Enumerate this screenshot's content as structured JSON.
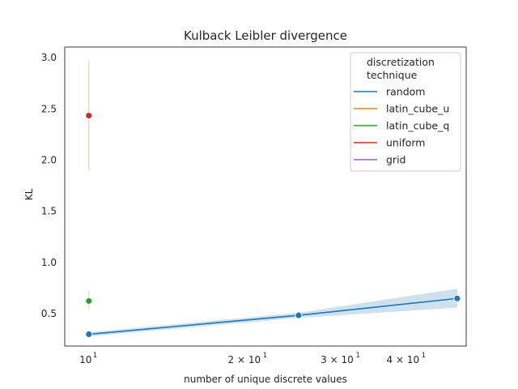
{
  "chart_data": {
    "type": "line",
    "title": "Kulback Leibler divergence",
    "xlabel": "number of unique discrete values",
    "ylabel": "KL",
    "xscale": "log",
    "xlim": [
      9.0,
      52.0
    ],
    "ylim": [
      0.18,
      3.1
    ],
    "x_ticks": [
      {
        "value": 10,
        "base": "10",
        "exp": "1",
        "mult": ""
      },
      {
        "value": 20,
        "base": "10",
        "exp": "1",
        "mult": "2 × "
      },
      {
        "value": 30,
        "base": "10",
        "exp": "1",
        "mult": "3 × "
      },
      {
        "value": 40,
        "base": "10",
        "exp": "1",
        "mult": "4 × "
      }
    ],
    "y_ticks": [
      0.5,
      1.0,
      1.5,
      2.0,
      2.5,
      3.0
    ],
    "y_tick_labels": [
      "0.5",
      "1.0",
      "1.5",
      "2.0",
      "2.5",
      "3.0"
    ],
    "grid": false,
    "legend": {
      "title_lines": [
        "discretization",
        "technique"
      ],
      "placement": "top-right"
    },
    "series": [
      {
        "name": "random",
        "color": "#1f77b4",
        "x": [
          10,
          25,
          50
        ],
        "y": [
          0.295,
          0.48,
          0.645
        ],
        "ci_lower": [
          0.275,
          0.455,
          0.555
        ],
        "ci_upper": [
          0.315,
          0.505,
          0.74
        ]
      },
      {
        "name": "latin_cube_u",
        "color": "#ff7f0e",
        "x": [],
        "y": [],
        "ci_lower": [],
        "ci_upper": []
      },
      {
        "name": "latin_cube_q",
        "color": "#2ca02c",
        "x": [
          10
        ],
        "y": [
          0.62
        ],
        "ci_lower": [
          0.54
        ],
        "ci_upper": [
          0.72
        ]
      },
      {
        "name": "uniform",
        "color": "#d62728",
        "x": [
          10
        ],
        "y": [
          2.43
        ],
        "ci_lower": [
          1.9
        ],
        "ci_upper": [
          2.96
        ]
      },
      {
        "name": "grid",
        "color": "#9467bd",
        "x": [],
        "y": [],
        "ci_lower": [],
        "ci_upper": []
      }
    ]
  }
}
